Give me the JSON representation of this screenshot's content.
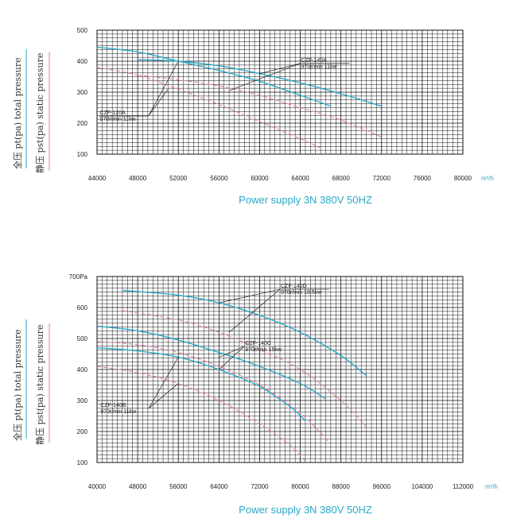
{
  "colors": {
    "total": "#2aa8c8",
    "static": "#e07aa8",
    "grid": "#111111",
    "text": "#222222"
  },
  "side_labels": {
    "total": "全压 pt(pa) total pressure",
    "static": "静压 pst(pa) static pressure"
  },
  "chart_data": [
    {
      "type": "line",
      "xlim": [
        44000,
        80000
      ],
      "ylim": [
        100,
        500
      ],
      "x_ticks": [
        44000,
        48000,
        52000,
        56000,
        60000,
        64000,
        68000,
        72000,
        76000,
        80000
      ],
      "y_ticks": [
        100,
        200,
        300,
        400,
        500
      ],
      "x_tick_labels": [
        "44000",
        "48000",
        "52000",
        "56000",
        "60000",
        "64000",
        "68000",
        "72000",
        "76000",
        "80000"
      ],
      "y_tick_labels": [
        "100",
        "200",
        "300",
        "400",
        "500"
      ],
      "x_unit": "m³/h",
      "grid": true,
      "footer": "Power supply   3N 380V  50HZ",
      "series": [
        {
          "kind": "total",
          "x": [
            44000,
            48000,
            52000,
            56000,
            60000,
            64000,
            67000
          ],
          "y": [
            445,
            430,
            400,
            370,
            335,
            290,
            255
          ]
        },
        {
          "kind": "total",
          "x": [
            48000,
            52000,
            56000,
            60000,
            64000,
            68000,
            72000
          ],
          "y": [
            405,
            400,
            385,
            360,
            330,
            295,
            255
          ]
        },
        {
          "kind": "static",
          "x": [
            44000,
            48000,
            52000,
            56000,
            60000,
            64000,
            66000
          ],
          "y": [
            380,
            355,
            310,
            260,
            205,
            150,
            120
          ]
        },
        {
          "kind": "static",
          "x": [
            48000,
            52000,
            56000,
            60000,
            64000,
            68000,
            72000
          ],
          "y": [
            355,
            340,
            320,
            290,
            250,
            210,
            155
          ]
        }
      ],
      "annotations": [
        {
          "lines": [
            "CZF-140A",
            "970r/min 11kw"
          ],
          "text_at": [
            64000,
            398
          ],
          "targets": [
            [
              60000,
              360
            ],
            [
              57000,
              305
            ]
          ]
        },
        {
          "lines": [
            "CZF-120A",
            "970r/min 11kw"
          ],
          "text_at": [
            44200,
            228
          ],
          "targets": [
            [
              52000,
              400
            ],
            [
              51000,
              310
            ]
          ]
        }
      ]
    },
    {
      "type": "line",
      "xlim": [
        40000,
        112000
      ],
      "ylim": [
        100,
        700
      ],
      "x_ticks": [
        40000,
        48000,
        56000,
        64000,
        72000,
        80000,
        88000,
        96000,
        104000,
        112000
      ],
      "y_ticks": [
        100,
        200,
        300,
        400,
        500,
        600,
        700
      ],
      "x_tick_labels": [
        "40000",
        "48000",
        "56000",
        "64000",
        "72000",
        "80000",
        "88000",
        "96000",
        "104000",
        "112000"
      ],
      "y_tick_labels": [
        "100",
        "200",
        "300",
        "400",
        "500",
        "600",
        "700Pa"
      ],
      "x_unit": "m³/h",
      "grid": true,
      "footer": "Power supply   3N 380V  50HZ",
      "series": [
        {
          "kind": "total",
          "x": [
            45000,
            56000,
            64000,
            72000,
            80000,
            88000,
            93000
          ],
          "y": [
            655,
            640,
            615,
            575,
            520,
            445,
            380
          ]
        },
        {
          "kind": "total",
          "x": [
            40000,
            48000,
            56000,
            64000,
            72000,
            80000,
            85000
          ],
          "y": [
            540,
            525,
            495,
            455,
            410,
            355,
            305
          ]
        },
        {
          "kind": "total",
          "x": [
            40000,
            48000,
            56000,
            64000,
            72000,
            78000,
            81000
          ],
          "y": [
            470,
            460,
            440,
            400,
            345,
            280,
            235
          ]
        },
        {
          "kind": "static",
          "x": [
            45000,
            56000,
            64000,
            72000,
            80000,
            88000,
            93000
          ],
          "y": [
            590,
            560,
            520,
            465,
            400,
            300,
            215
          ]
        },
        {
          "kind": "static",
          "x": [
            40000,
            48000,
            56000,
            64000,
            72000,
            80000,
            86000
          ],
          "y": [
            490,
            480,
            455,
            410,
            350,
            260,
            160
          ]
        },
        {
          "kind": "static",
          "x": [
            40000,
            48000,
            56000,
            64000,
            72000,
            78000,
            81000
          ],
          "y": [
            410,
            390,
            355,
            300,
            225,
            155,
            105
          ]
        }
      ],
      "annotations": [
        {
          "lines": [
            "CZF-140D",
            "970r/min 18.5kw"
          ],
          "text_at": [
            76000,
            664
          ],
          "targets": [
            [
              64000,
              615
            ],
            [
              66000,
              520
            ]
          ]
        },
        {
          "lines": [
            "CZF-140C",
            "970r/min 15kw"
          ],
          "text_at": [
            69000,
            480
          ],
          "targets": [
            [
              64000,
              440
            ],
            [
              64000,
              400
            ]
          ]
        },
        {
          "lines": [
            "CZF-140B",
            "970r/min 11kw"
          ],
          "text_at": [
            40500,
            280
          ],
          "targets": [
            [
              56000,
              440
            ],
            [
              56000,
              355
            ]
          ]
        }
      ]
    }
  ]
}
